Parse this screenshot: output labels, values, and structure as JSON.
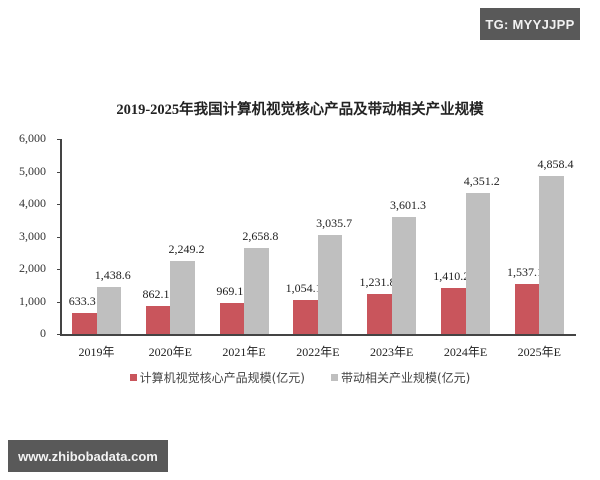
{
  "watermarks": {
    "top_right": "TG: MYYJJPP",
    "bottom_left": "www.zhibobadata.com"
  },
  "colors": {
    "series0": "#c9555c",
    "series1": "#bfbfbf"
  },
  "chart_data": {
    "type": "bar",
    "title": "2019-2025年我国计算机视觉核心产品及带动相关产业规模",
    "xlabel": "",
    "ylabel": "",
    "ylim": [
      0,
      6000
    ],
    "yticks": [
      "0",
      "1,000",
      "2,000",
      "3,000",
      "4,000",
      "5,000",
      "6,000"
    ],
    "categories": [
      "2019年",
      "2020年E",
      "2021年E",
      "2022年E",
      "2023年E",
      "2024年E",
      "2025年E"
    ],
    "series": [
      {
        "name": "计算机视觉核心产品规模(亿元)",
        "values": [
          633.3,
          862.1,
          969.1,
          1054.1,
          1231.8,
          1410.2,
          1537.1
        ],
        "labels": [
          "633.3",
          "862.1",
          "969.1",
          "1,054.1",
          "1,231.8",
          "1,410.2",
          "1,537.1"
        ]
      },
      {
        "name": "带动相关产业规模(亿元)",
        "values": [
          1438.6,
          2249.2,
          2658.8,
          3035.7,
          3601.3,
          4351.2,
          4858.4
        ],
        "labels": [
          "1,438.6",
          "2,249.2",
          "2,658.8",
          "3,035.7",
          "3,601.3",
          "4,351.2",
          "4,858.4"
        ]
      }
    ],
    "legend_position": "bottom",
    "grid": false
  }
}
